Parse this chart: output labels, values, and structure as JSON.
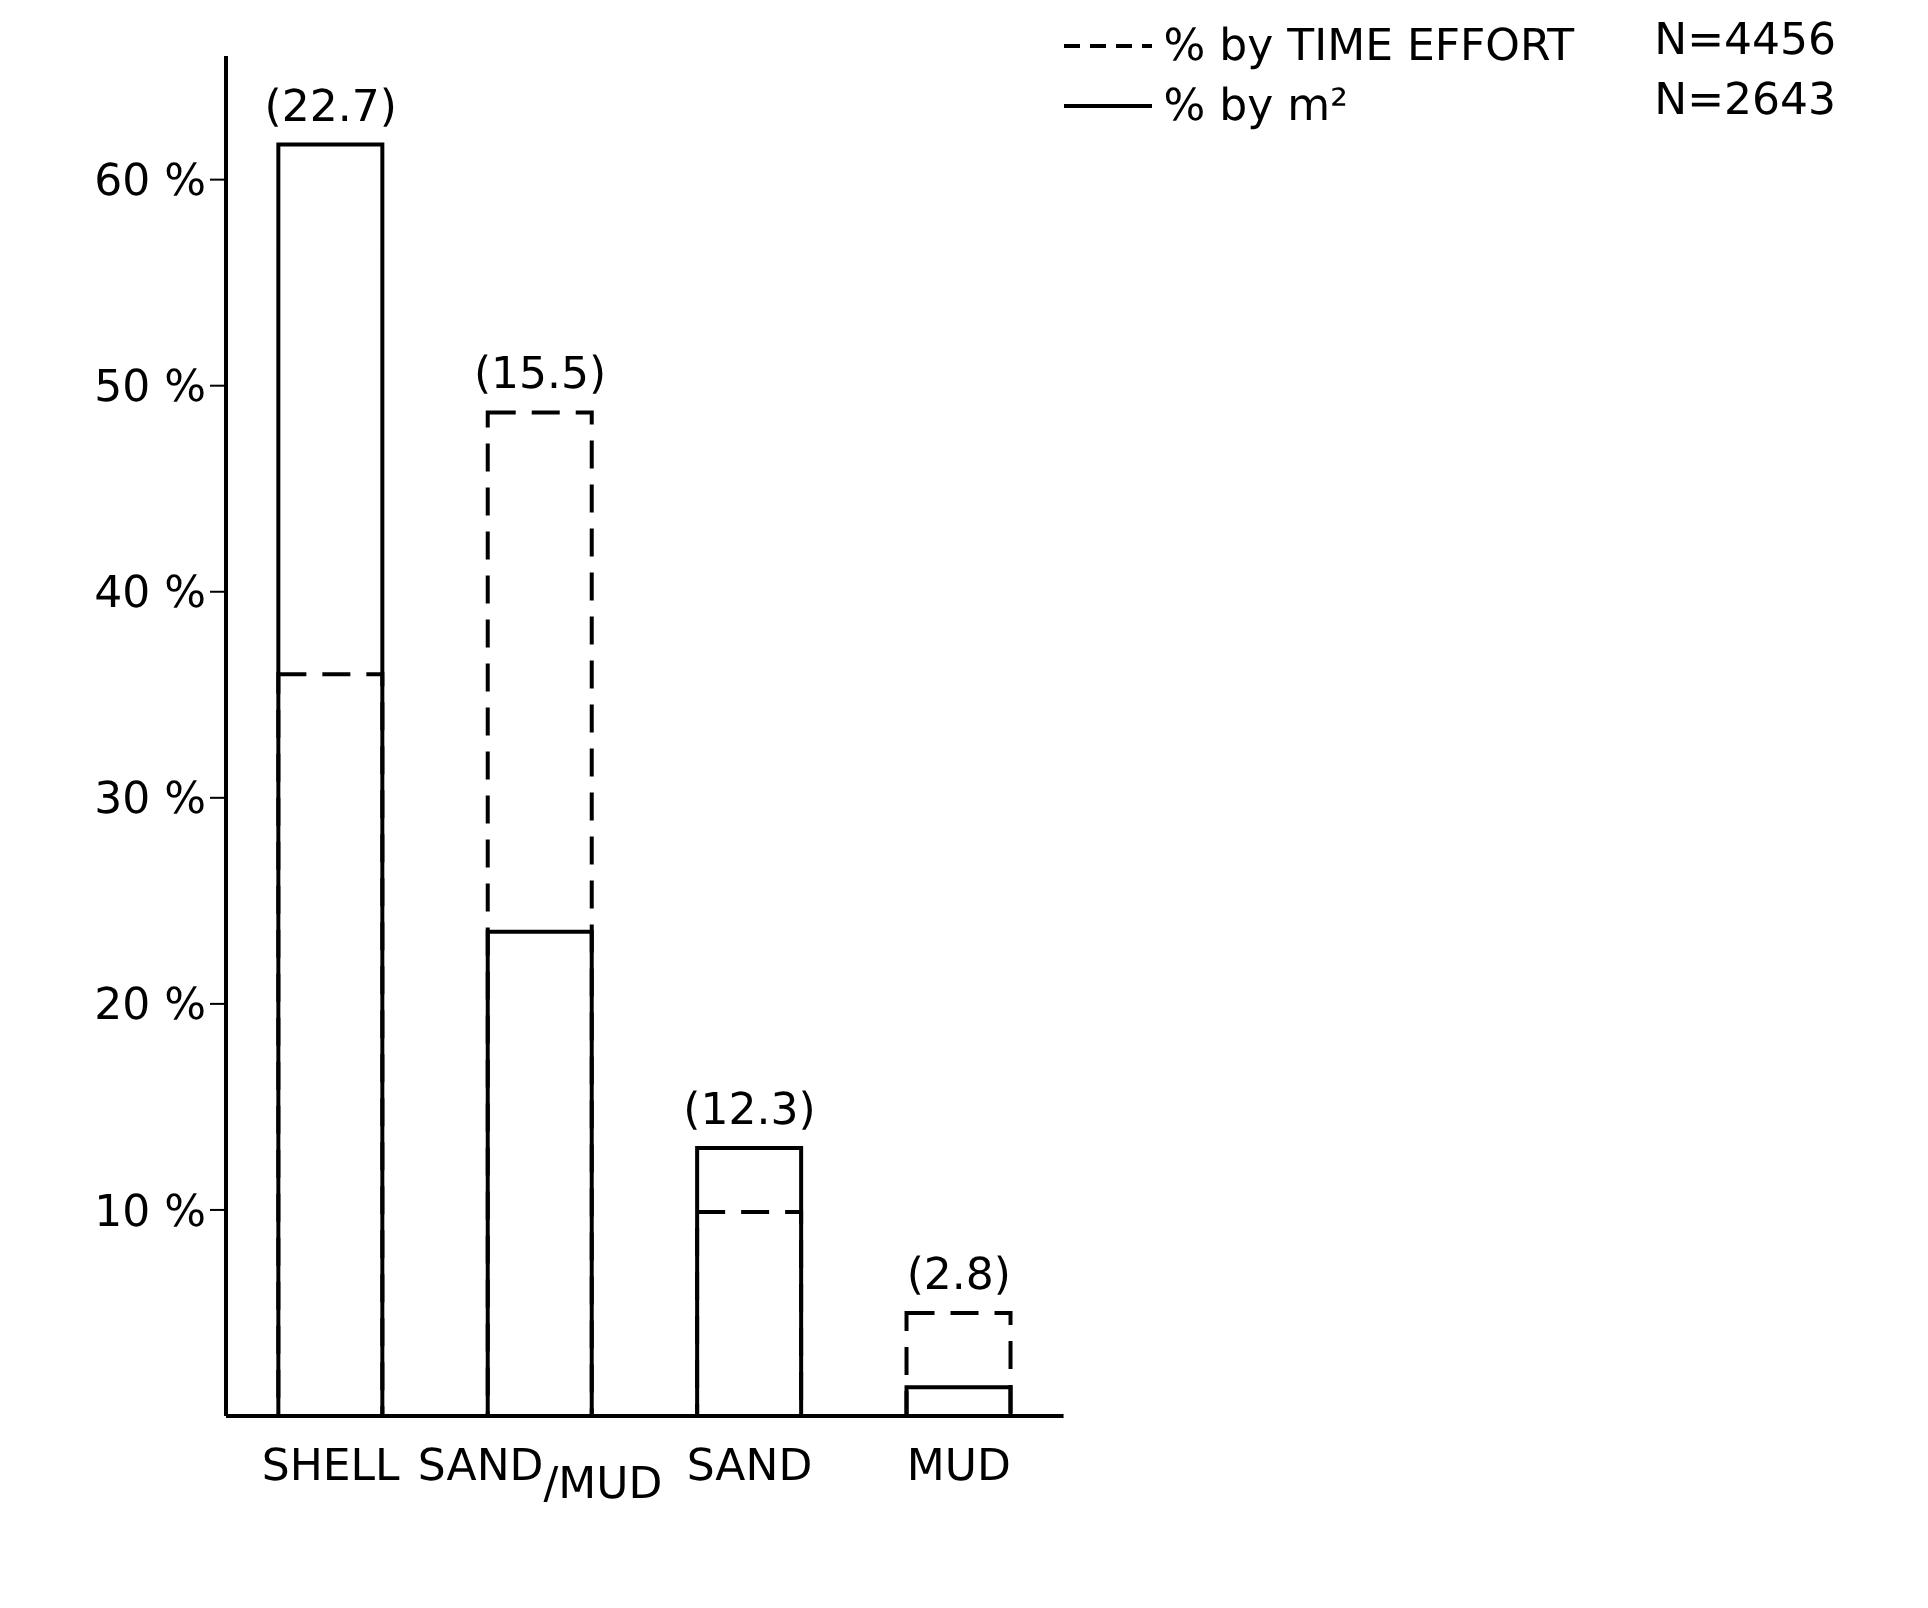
{
  "chart_data": {
    "type": "bar",
    "categories": [
      "SHELL",
      "SAND$_{/MUD}$",
      "SAND",
      "MUD"
    ],
    "series": [
      {
        "name": "% by TIME EFFORT",
        "color": "#000000",
        "line_style": "dashed",
        "values": [
          36.0,
          48.7,
          9.9,
          5.0
        ]
      },
      {
        "name": "% by m²",
        "color": "#000000",
        "line_style": "solid",
        "values": [
          61.7,
          23.5,
          13.0,
          1.4
        ]
      }
    ],
    "ylim": [
      0,
      66
    ],
    "yticks": [
      {
        "value": 10,
        "label": "10 %"
      },
      {
        "value": 20,
        "label": "20 %"
      },
      {
        "value": 30,
        "label": "30 %"
      },
      {
        "value": 40,
        "label": "40 %"
      },
      {
        "value": 50,
        "label": "50 %"
      },
      {
        "value": 60,
        "label": "60 %"
      }
    ],
    "legend": "top right",
    "annotations": [
      "(22.7)",
      "(15.5)",
      "(12.3)",
      "(2.8)",
      "N=4456",
      "N=2643"
    ]
  }
}
